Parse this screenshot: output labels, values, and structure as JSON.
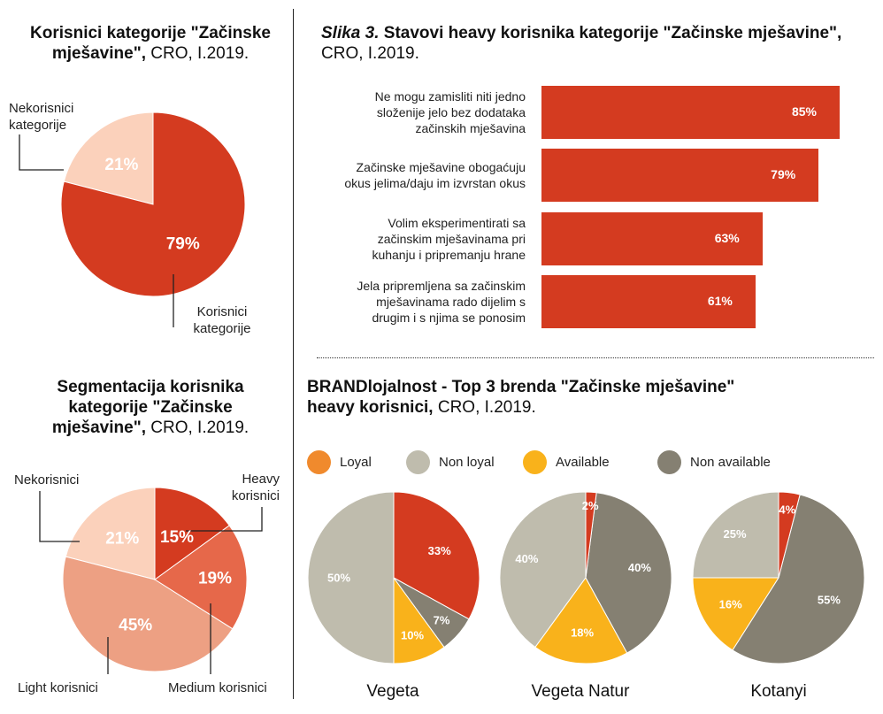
{
  "pie1": {
    "title_bold": "Korisnici kategorije \"Začinske mješavine\",",
    "title_rest": " CRO, I.2019.",
    "label_non_l1": "Nekorisnici",
    "label_non_l2": "kategorije",
    "label_users_l1": "Korisnici",
    "label_users_l2": "kategorije"
  },
  "bars": {
    "title_italic": "Slika 3.",
    "title_bold": " Stavovi heavy korisnika kategorije \"Začinske mješavine\",",
    "title_rest": "CRO, I.2019."
  },
  "pie2": {
    "title_bold_l1": "Segmentacija korisnika",
    "title_bold_l2": "kategorije \"Začinske",
    "title_bold_l3": "mješavine\",",
    "title_rest": " CRO, I.2019.",
    "label_non": "Nekorisnici",
    "label_heavy_l1": "Heavy",
    "label_heavy_l2": "korisnici",
    "label_light": "Light korisnici",
    "label_medium": "Medium korisnici"
  },
  "brand": {
    "title_bold_l1": "BRANDlojalnost - Top 3 brenda \"Začinske mješavine\"",
    "title_bold_l2": "heavy korisnici,",
    "title_rest": " CRO, I.2019."
  },
  "legend": [
    {
      "label": "Loyal",
      "color": "#f08a2d"
    },
    {
      "label": "Non loyal",
      "color": "#bfbcad"
    },
    {
      "label": "Available",
      "color": "#f9b21b"
    },
    {
      "label": "Non available",
      "color": "#858072"
    }
  ],
  "chart_data": [
    {
      "type": "pie",
      "title": "Korisnici kategorije \"Začinske mješavine\", CRO, I.2019.",
      "slices": [
        {
          "label": "Korisnici kategorije",
          "value": 79,
          "display": "79%",
          "color": "#d43b20"
        },
        {
          "label": "Nekorisnici kategorije",
          "value": 21,
          "display": "21%",
          "color": "#fbd1bb"
        }
      ]
    },
    {
      "type": "bar",
      "orientation": "horizontal",
      "title": "Slika 3. Stavovi heavy korisnika kategorije \"Začinske mješavine\", CRO, I.2019.",
      "categories": [
        [
          "Ne mogu zamisliti niti jedno",
          "složenije jelo bez dodataka",
          "začinskih mješavina"
        ],
        [
          "Začinske mješavine obogaćuju",
          "okus jelima/daju im izvrstan okus"
        ],
        [
          "Volim eksperimentirati sa",
          "začinskim mješavinama pri",
          "kuhanju i pripremanju hrane"
        ],
        [
          "Jela pripremljena sa začinskim",
          "mješavinama rado dijelim s",
          "drugim i s njima se ponosim"
        ]
      ],
      "values": [
        85,
        79,
        63,
        61
      ],
      "display": [
        "85%",
        "79%",
        "63%",
        "61%"
      ],
      "color": "#d43b20"
    },
    {
      "type": "pie",
      "title": "Segmentacija korisnika kategorije \"Začinske mješavine\", CRO, I.2019.",
      "slices": [
        {
          "label": "Heavy korisnici",
          "value": 15,
          "display": "15%",
          "color": "#d43b20"
        },
        {
          "label": "Medium korisnici",
          "value": 19,
          "display": "19%",
          "color": "#e6684a"
        },
        {
          "label": "Light korisnici",
          "value": 45,
          "display": "45%",
          "color": "#eda083"
        },
        {
          "label": "Nekorisnici",
          "value": 21,
          "display": "21%",
          "color": "#fbd1bb"
        }
      ]
    },
    {
      "type": "pie",
      "title": "Vegeta",
      "slices": [
        {
          "label": "Loyal",
          "value": 33,
          "display": "33%",
          "color": "#d43b20"
        },
        {
          "label": "Non available",
          "value": 7,
          "display": "7%",
          "color": "#858072"
        },
        {
          "label": "Available",
          "value": 10,
          "display": "10%",
          "color": "#f9b21b"
        },
        {
          "label": "Non loyal",
          "value": 50,
          "display": "50%",
          "color": "#bfbcad"
        }
      ]
    },
    {
      "type": "pie",
      "title": "Vegeta Natur",
      "slices": [
        {
          "label": "Loyal",
          "value": 2,
          "display": "2%",
          "color": "#d43b20"
        },
        {
          "label": "Non available",
          "value": 40,
          "display": "40%",
          "color": "#858072"
        },
        {
          "label": "Available",
          "value": 18,
          "display": "18%",
          "color": "#f9b21b"
        },
        {
          "label": "Non loyal",
          "value": 40,
          "display": "40%",
          "color": "#bfbcad"
        }
      ]
    },
    {
      "type": "pie",
      "title": "Kotanyi",
      "slices": [
        {
          "label": "Loyal",
          "value": 4,
          "display": "4%",
          "color": "#d43b20"
        },
        {
          "label": "Non available",
          "value": 55,
          "display": "55%",
          "color": "#858072"
        },
        {
          "label": "Available",
          "value": 16,
          "display": "16%",
          "color": "#f9b21b"
        },
        {
          "label": "Non loyal",
          "value": 25,
          "display": "25%",
          "color": "#bfbcad"
        }
      ]
    }
  ]
}
